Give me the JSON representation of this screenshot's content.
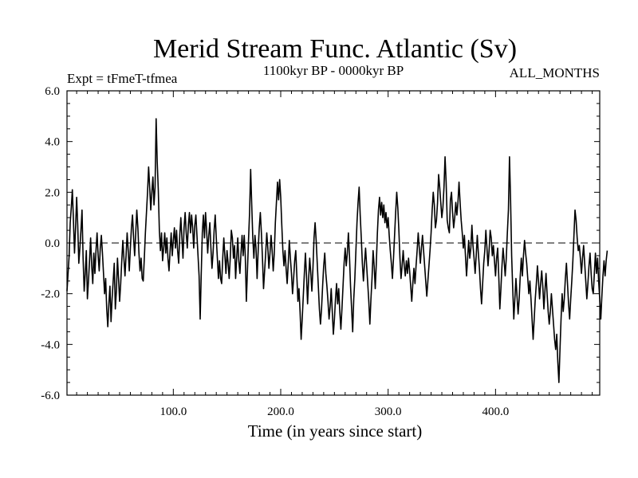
{
  "chart_data": {
    "type": "line",
    "title": "Merid Stream Func. Atlantic (Sv)",
    "subtitle_left": "Expt = tFmeT-tfmea",
    "subtitle_center": "1100kyr BP - 0000kyr BP",
    "subtitle_right": "ALL_MONTHS",
    "xlabel": "Time (in years since start)",
    "ylabel": "",
    "xlim": [
      1,
      497
    ],
    "ylim": [
      -6.0,
      6.0
    ],
    "x_ticks": [
      100,
      200,
      300,
      400
    ],
    "x_tick_labels": [
      "100.0",
      "200.0",
      "300.0",
      "400.0"
    ],
    "y_ticks": [
      -6,
      -4,
      -2,
      0,
      2,
      4,
      6
    ],
    "y_tick_labels": [
      "-6.0",
      "-4.0",
      "-2.0",
      "0.0",
      "2.0",
      "4.0",
      "6.0"
    ],
    "reference_line": 0.0,
    "grid": false,
    "series": [
      {
        "name": "Merid Stream Func. Atlantic",
        "x_start": 1,
        "x_step": 1,
        "values": [
          -1.9,
          -1.2,
          -0.5,
          0.8,
          1.4,
          2.1,
          0.9,
          -0.4,
          0.6,
          1.8,
          0.7,
          -0.8,
          -0.2,
          0.5,
          1.3,
          -0.6,
          -1.9,
          -1.2,
          -0.3,
          -2.2,
          -1.5,
          -0.7,
          0.2,
          -0.9,
          -1.6,
          -0.4,
          -1.2,
          -0.3,
          0.4,
          -0.5,
          -1.1,
          -0.2,
          0.3,
          -0.4,
          -1.2,
          -2.0,
          -1.4,
          -2.6,
          -3.3,
          -2.4,
          -1.7,
          -3.1,
          -2.2,
          -1.5,
          -0.8,
          -2.6,
          -1.9,
          -0.6,
          -1.4,
          -2.3,
          -1.6,
          -0.7,
          0.1,
          -0.6,
          -1.3,
          -0.5,
          0.4,
          -0.3,
          -1.1,
          -0.2,
          0.6,
          1.1,
          0.2,
          -0.5,
          0.4,
          1.3,
          0.6,
          -0.4,
          -1.1,
          -0.6,
          -1.4,
          -1.5,
          -0.6,
          0.4,
          1.2,
          2.0,
          3.0,
          2.2,
          1.3,
          2.0,
          2.6,
          1.5,
          2.2,
          4.9,
          3.2,
          2.1,
          0.5,
          -0.3,
          0.4,
          -0.7,
          -0.2,
          0.4,
          -0.4,
          0.2,
          -0.6,
          -1.1,
          -0.3,
          0.4,
          -0.5,
          0.1,
          0.6,
          -0.2,
          0.5,
          -0.3,
          -0.8,
          0.3,
          1.0,
          0.2,
          -0.6,
          0.6,
          1.2,
          0.4,
          -0.2,
          0.7,
          1.2,
          0.4,
          1.1,
          0.6,
          -0.2,
          0.7,
          1.1,
          0.3,
          -0.5,
          -1.3,
          -3.0,
          -1.2,
          0.4,
          1.1,
          0.2,
          1.2,
          0.5,
          -0.4,
          0.3,
          0.8,
          -0.2,
          -1.0,
          -0.4,
          0.5,
          1.1,
          0.2,
          -0.6,
          -1.4,
          -0.7,
          -1.4,
          -1.6,
          -0.6,
          0.2,
          -0.5,
          -1.2,
          -0.3,
          -0.8,
          -1.4,
          -0.6,
          0.5,
          0.2,
          -0.6,
          -0.1,
          -1.4,
          -0.6,
          0.2,
          -0.7,
          -1.2,
          -0.4,
          0.3,
          -0.5,
          0.3,
          -0.5,
          -2.3,
          -1.1,
          0.1,
          1.2,
          2.9,
          1.5,
          0.2,
          -0.6,
          0.3,
          -0.2,
          -1.4,
          -0.3,
          0.6,
          1.2,
          0.4,
          -0.6,
          -1.8,
          -1.1,
          -0.4,
          0.4,
          -0.2,
          -1.0,
          -0.4,
          0.3,
          -0.3,
          -1.1,
          -0.4,
          0.8,
          1.6,
          2.4,
          1.7,
          2.5,
          1.8,
          0.7,
          -0.3,
          -0.9,
          -0.3,
          -1.0,
          -1.6,
          -0.8,
          0.1,
          -0.6,
          -1.2,
          -2.0,
          -1.4,
          -0.7,
          -0.3,
          -1.3,
          -2.3,
          -1.8,
          -2.7,
          -3.8,
          -3.0,
          -2.1,
          -1.2,
          -0.4,
          -1.3,
          -2.4,
          -1.4,
          -0.6,
          -1.2,
          -1.9,
          -1.0,
          0.2,
          0.8,
          0.1,
          -0.8,
          -1.7,
          -2.6,
          -3.2,
          -2.6,
          -1.7,
          -0.9,
          -0.4,
          -1.2,
          -1.7,
          -2.3,
          -3.0,
          -2.5,
          -1.8,
          -2.7,
          -3.6,
          -3.0,
          -2.2,
          -1.6,
          -2.4,
          -1.8,
          -2.7,
          -3.4,
          -2.6,
          -1.7,
          -0.8,
          -0.2,
          -0.9,
          -0.4,
          0.4,
          -0.5,
          -1.7,
          -2.6,
          -3.5,
          -2.2,
          -1.4,
          -0.3,
          0.8,
          1.6,
          2.2,
          1.1,
          0.2,
          -0.8,
          -1.5,
          -0.8,
          -0.2,
          -0.9,
          -1.6,
          -2.3,
          -3.2,
          -2.2,
          -1.4,
          -0.3,
          -0.9,
          -1.8,
          -0.8,
          0.4,
          1.3,
          1.8,
          1.1,
          1.6,
          1.0,
          1.5,
          0.8,
          1.2,
          0.6,
          1.0,
          0.3,
          -0.3,
          -0.8,
          -1.4,
          -0.6,
          0.3,
          1.2,
          2.0,
          1.4,
          0.5,
          -0.6,
          -1.4,
          -0.9,
          -0.3,
          -0.9,
          -1.3,
          -0.7,
          -1.2,
          -0.6,
          -1.1,
          -1.7,
          -2.3,
          -1.6,
          -1.0,
          -1.6,
          -0.9,
          -0.3,
          0.4,
          -0.2,
          -0.8,
          -0.2,
          0.3,
          -0.3,
          -0.9,
          -1.5,
          -2.1,
          -1.5,
          -0.9,
          -0.3,
          0.4,
          1.3,
          2.0,
          1.5,
          0.6,
          0.9,
          1.6,
          2.7,
          2.2,
          1.6,
          1.0,
          1.4,
          2.2,
          3.4,
          2.4,
          0.9,
          0.6,
          0.4,
          1.7,
          2.0,
          1.2,
          0.6,
          1.0,
          1.6,
          1.1,
          1.6,
          2.4,
          1.6,
          0.9,
          0.4,
          -0.2,
          0.3,
          -0.5,
          -1.3,
          -0.6,
          0.1,
          -0.6,
          -0.2,
          0.7,
          -0.1,
          -0.6,
          -1.2,
          -0.5,
          0.3,
          -0.4,
          -1.0,
          -1.8,
          -2.4,
          -1.6,
          -0.8,
          -0.3,
          0.5,
          -0.2,
          -0.9,
          -0.3,
          0.5,
          0.2,
          -0.5,
          -0.1,
          -0.7,
          -1.3,
          -0.6,
          -0.2,
          -1.3,
          -2.6,
          -1.8,
          -0.9,
          -0.2,
          -0.7,
          -1.3,
          -0.6,
          0.4,
          1.3,
          3.4,
          1.7,
          -0.5,
          -1.8,
          -3.0,
          -2.2,
          -1.4,
          -2.1,
          -2.8,
          -2.2,
          -1.3,
          -0.6,
          -1.3,
          -0.5,
          0.1,
          -0.4,
          -0.8,
          -1.4,
          -2.0,
          -1.5,
          -2.2,
          -3.0,
          -3.8,
          -3.0,
          -2.2,
          -1.6,
          -0.9,
          -1.5,
          -2.2,
          -1.6,
          -1.1,
          -1.7,
          -2.6,
          -1.9,
          -1.2,
          -2.0,
          -2.7,
          -3.2,
          -2.7,
          -2.0,
          -2.6,
          -3.2,
          -3.8,
          -4.2,
          -3.6,
          -4.7,
          -5.5,
          -4.2,
          -3.0,
          -2.0,
          -2.7,
          -2.2,
          -1.4,
          -0.8,
          -1.6,
          -2.4,
          -3.0,
          -2.2,
          -1.5,
          -0.7,
          0.3,
          1.3,
          0.9,
          0.2,
          -0.3,
          -0.1,
          -0.6,
          -1.2,
          -0.6,
          -0.1,
          -0.8,
          -1.5,
          -2.2,
          -1.6,
          -0.9,
          -0.4,
          -1.2,
          -1.8,
          -2.0,
          -1.2,
          -0.4,
          -1.2,
          -0.6,
          -1.5,
          -2.2,
          -3.0,
          -2.1,
          -1.3,
          -0.7,
          -1.3,
          -0.7,
          -0.3
        ]
      }
    ]
  }
}
